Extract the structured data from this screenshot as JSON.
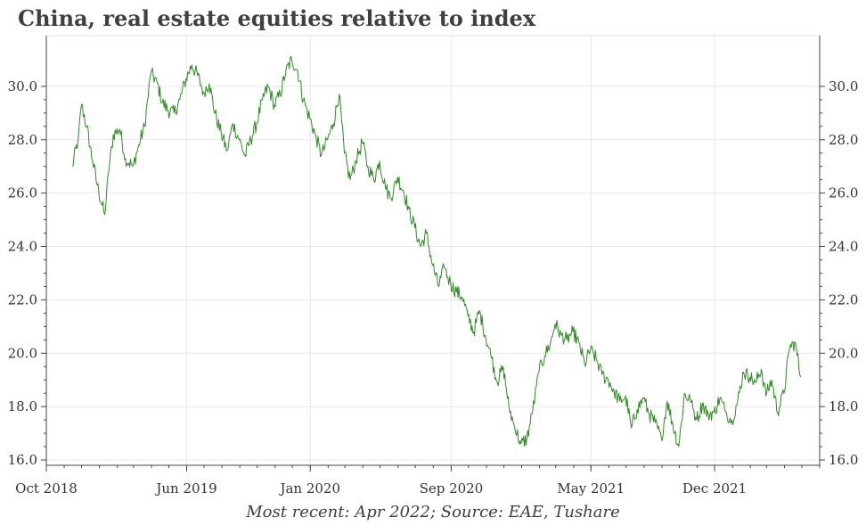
{
  "chart_data": {
    "type": "line",
    "title": "China, real estate equities relative to index",
    "caption": "Most recent: Apr 2022; Source: EAE, Tushare",
    "xlabel": "",
    "ylabel": "",
    "ylim": [
      15.8,
      31.9
    ],
    "xlim": [
      "2018-10-01",
      "2022-06-01"
    ],
    "y_ticks": [
      "16.0",
      "18.0",
      "20.0",
      "22.0",
      "24.0",
      "26.0",
      "28.0",
      "30.0"
    ],
    "x_ticks": [
      {
        "label": "Oct 2018",
        "date": "2018-10-01"
      },
      {
        "label": "Jun 2019",
        "date": "2019-06-01"
      },
      {
        "label": "Jan 2020",
        "date": "2020-01-01"
      },
      {
        "label": "Sep 2020",
        "date": "2020-09-01"
      },
      {
        "label": "May 2021",
        "date": "2021-05-01"
      },
      {
        "label": "Dec 2021",
        "date": "2021-12-01"
      }
    ],
    "grid": true,
    "line_color": "#2e8b22",
    "series": [
      {
        "x": [
          "2018-11-15",
          "2018-11-25",
          "2018-12-01",
          "2018-12-10",
          "2018-12-20",
          "2018-12-31",
          "2019-01-10",
          "2019-01-17",
          "2019-01-25",
          "2019-02-05",
          "2019-02-15",
          "2019-02-28",
          "2019-03-10",
          "2019-03-20",
          "2019-03-31",
          "2019-04-10",
          "2019-04-20",
          "2019-04-30",
          "2019-05-10",
          "2019-05-20",
          "2019-05-31",
          "2019-06-10",
          "2019-06-20",
          "2019-06-30",
          "2019-07-10",
          "2019-07-20",
          "2019-07-31",
          "2019-08-10",
          "2019-08-20",
          "2019-08-31",
          "2019-09-10",
          "2019-09-20",
          "2019-09-30",
          "2019-10-10",
          "2019-10-20",
          "2019-10-31",
          "2019-11-10",
          "2019-11-20",
          "2019-11-30",
          "2019-12-10",
          "2019-12-20",
          "2019-12-31",
          "2020-01-10",
          "2020-01-20",
          "2020-01-31",
          "2020-02-10",
          "2020-02-20",
          "2020-02-29",
          "2020-03-10",
          "2020-03-20",
          "2020-03-31",
          "2020-04-10",
          "2020-04-20",
          "2020-04-30",
          "2020-05-10",
          "2020-05-20",
          "2020-05-31",
          "2020-06-10",
          "2020-06-20",
          "2020-06-30",
          "2020-07-10",
          "2020-07-20",
          "2020-07-31",
          "2020-08-10",
          "2020-08-20",
          "2020-08-31",
          "2020-09-10",
          "2020-09-20",
          "2020-09-30",
          "2020-10-10",
          "2020-10-20",
          "2020-10-31",
          "2020-11-10",
          "2020-11-20",
          "2020-11-30",
          "2020-12-10",
          "2020-12-20",
          "2020-12-31",
          "2021-01-10",
          "2021-01-20",
          "2021-01-31",
          "2021-02-10",
          "2021-02-20",
          "2021-02-28",
          "2021-03-10",
          "2021-03-20",
          "2021-03-31",
          "2021-04-10",
          "2021-04-20",
          "2021-04-30",
          "2021-05-10",
          "2021-05-20",
          "2021-05-31",
          "2021-06-10",
          "2021-06-20",
          "2021-06-30",
          "2021-07-10",
          "2021-07-20",
          "2021-07-31",
          "2021-08-10",
          "2021-08-20",
          "2021-08-31",
          "2021-09-10",
          "2021-09-20",
          "2021-09-30",
          "2021-10-10",
          "2021-10-20",
          "2021-10-31",
          "2021-11-10",
          "2021-11-20",
          "2021-11-30",
          "2021-12-10",
          "2021-12-20",
          "2021-12-31",
          "2022-01-10",
          "2022-01-20",
          "2022-01-31",
          "2022-02-10",
          "2022-02-20",
          "2022-02-28",
          "2022-03-10",
          "2022-03-20",
          "2022-03-31",
          "2022-04-10",
          "2022-04-20",
          "2022-04-29"
        ],
        "values": [
          27.0,
          28.0,
          29.3,
          28.5,
          27.2,
          26.0,
          25.2,
          26.8,
          28.2,
          28.4,
          27.3,
          27.0,
          27.8,
          28.5,
          30.5,
          30.2,
          29.4,
          29.1,
          29.0,
          29.5,
          30.3,
          30.8,
          30.4,
          29.8,
          30.1,
          29.0,
          28.2,
          27.6,
          28.6,
          28.0,
          27.4,
          28.0,
          28.6,
          29.5,
          30.0,
          29.3,
          29.7,
          30.6,
          31.0,
          30.6,
          29.5,
          28.8,
          28.2,
          27.4,
          28.0,
          28.6,
          29.7,
          27.5,
          26.5,
          27.2,
          27.9,
          27.0,
          26.5,
          27.2,
          26.2,
          25.8,
          26.6,
          26.1,
          25.4,
          24.7,
          24.0,
          24.5,
          23.3,
          22.5,
          23.2,
          22.6,
          22.3,
          22.1,
          21.4,
          20.8,
          21.6,
          20.6,
          19.8,
          18.9,
          19.5,
          18.0,
          17.2,
          16.6,
          16.8,
          17.8,
          19.3,
          19.9,
          20.4,
          21.1,
          20.7,
          20.5,
          20.8,
          20.4,
          19.6,
          20.1,
          19.8,
          19.2,
          19.0,
          18.6,
          18.2,
          18.4,
          17.2,
          17.9,
          18.3,
          17.7,
          17.4,
          16.8,
          18.2,
          17.3,
          16.5,
          18.5,
          18.2,
          17.5,
          18.1,
          17.7,
          17.8,
          18.3,
          17.8,
          17.5,
          18.2,
          19.3,
          19.1,
          18.9,
          19.4,
          18.4,
          19.0,
          17.8,
          18.5,
          20.2,
          20.4,
          19.1
        ]
      }
    ]
  }
}
